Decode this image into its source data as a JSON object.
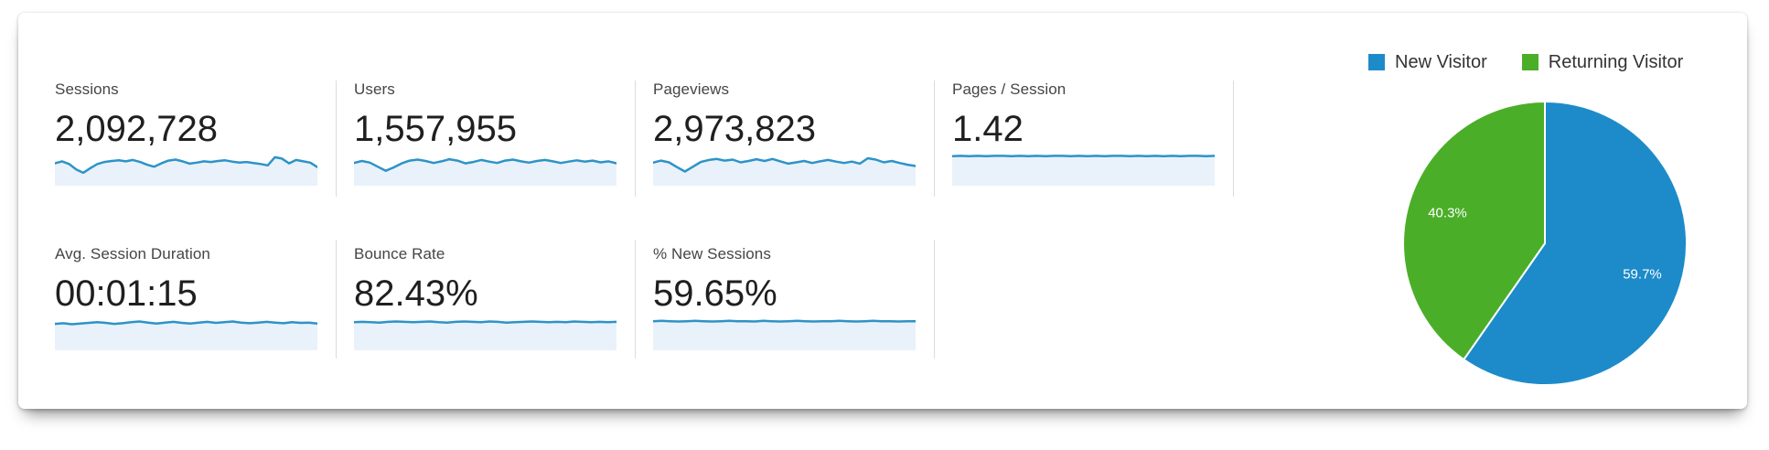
{
  "metrics": [
    {
      "label": "Sessions",
      "value": "2,092,728",
      "spark": [
        0.34,
        0.28,
        0.36,
        0.52,
        0.62,
        0.48,
        0.36,
        0.3,
        0.27,
        0.25,
        0.28,
        0.24,
        0.3,
        0.38,
        0.44,
        0.34,
        0.26,
        0.23,
        0.28,
        0.35,
        0.32,
        0.28,
        0.3,
        0.27,
        0.25,
        0.29,
        0.32,
        0.3,
        0.33,
        0.36,
        0.4,
        0.16,
        0.2,
        0.34,
        0.24,
        0.28,
        0.32,
        0.45
      ]
    },
    {
      "label": "Users",
      "value": "1,557,955",
      "spark": [
        0.33,
        0.27,
        0.32,
        0.44,
        0.56,
        0.46,
        0.34,
        0.26,
        0.23,
        0.27,
        0.33,
        0.28,
        0.22,
        0.26,
        0.34,
        0.3,
        0.24,
        0.29,
        0.33,
        0.26,
        0.23,
        0.28,
        0.32,
        0.27,
        0.24,
        0.28,
        0.33,
        0.29,
        0.25,
        0.29,
        0.26,
        0.31,
        0.28,
        0.34
      ]
    },
    {
      "label": "Pageviews",
      "value": "2,973,823",
      "spark": [
        0.32,
        0.26,
        0.31,
        0.45,
        0.58,
        0.44,
        0.3,
        0.24,
        0.21,
        0.26,
        0.23,
        0.31,
        0.27,
        0.22,
        0.27,
        0.21,
        0.28,
        0.35,
        0.31,
        0.27,
        0.33,
        0.28,
        0.24,
        0.29,
        0.33,
        0.29,
        0.35,
        0.19,
        0.23,
        0.31,
        0.27,
        0.33,
        0.38,
        0.42
      ]
    },
    {
      "label": "Pages / Session",
      "value": "1.42",
      "spark": [
        0.13,
        0.12,
        0.13,
        0.12,
        0.13,
        0.12,
        0.12,
        0.13,
        0.12,
        0.13,
        0.12,
        0.13,
        0.12,
        0.12,
        0.13,
        0.12,
        0.13,
        0.12,
        0.13,
        0.12,
        0.12,
        0.13,
        0.12,
        0.13,
        0.12,
        0.13,
        0.12,
        0.13,
        0.12,
        0.12,
        0.13,
        0.12
      ]
    },
    {
      "label": "Avg. Session Duration",
      "value": "00:01:15",
      "spark": [
        0.22,
        0.2,
        0.23,
        0.21,
        0.19,
        0.17,
        0.19,
        0.22,
        0.2,
        0.17,
        0.15,
        0.18,
        0.21,
        0.18,
        0.16,
        0.19,
        0.21,
        0.18,
        0.16,
        0.19,
        0.17,
        0.15,
        0.18,
        0.2,
        0.18,
        0.16,
        0.18,
        0.2,
        0.17,
        0.19,
        0.18,
        0.21
      ]
    },
    {
      "label": "Bounce Rate",
      "value": "82.43%",
      "spark": [
        0.17,
        0.16,
        0.17,
        0.18,
        0.16,
        0.15,
        0.16,
        0.17,
        0.16,
        0.15,
        0.17,
        0.18,
        0.16,
        0.15,
        0.16,
        0.17,
        0.15,
        0.16,
        0.18,
        0.17,
        0.16,
        0.15,
        0.16,
        0.17,
        0.16,
        0.17,
        0.15,
        0.16,
        0.17,
        0.16,
        0.17,
        0.16
      ]
    },
    {
      "label": "% New Sessions",
      "value": "59.65%",
      "spark": [
        0.14,
        0.13,
        0.14,
        0.15,
        0.14,
        0.13,
        0.14,
        0.15,
        0.14,
        0.13,
        0.14,
        0.14,
        0.15,
        0.13,
        0.14,
        0.15,
        0.14,
        0.13,
        0.14,
        0.15,
        0.14,
        0.14,
        0.13,
        0.14,
        0.15,
        0.14,
        0.13,
        0.14,
        0.14,
        0.15,
        0.14,
        0.14
      ]
    }
  ],
  "legend": {
    "items": [
      {
        "label": "New Visitor",
        "color": "#1d8bc9"
      },
      {
        "label": "Returning Visitor",
        "color": "#4bae28"
      }
    ]
  },
  "chart_data": {
    "type": "pie",
    "title": "",
    "legend_position": "top-right",
    "start_angle_deg": 0,
    "direction": "clockwise",
    "label_color": "#ffffff",
    "slices": [
      {
        "label": "New Visitor",
        "value": 59.7,
        "display": "59.7%",
        "color": "#1d8bc9"
      },
      {
        "label": "Returning Visitor",
        "value": 40.3,
        "display": "40.3%",
        "color": "#4bae28"
      }
    ]
  },
  "sparkline_style": {
    "line_color": "#2e93c7",
    "fill_color": "#e9f2fa"
  },
  "colors": {
    "divider": "#dcdcdc",
    "metric_label": "#454545",
    "metric_value": "#1f1f1f",
    "legend_text": "#333333"
  }
}
